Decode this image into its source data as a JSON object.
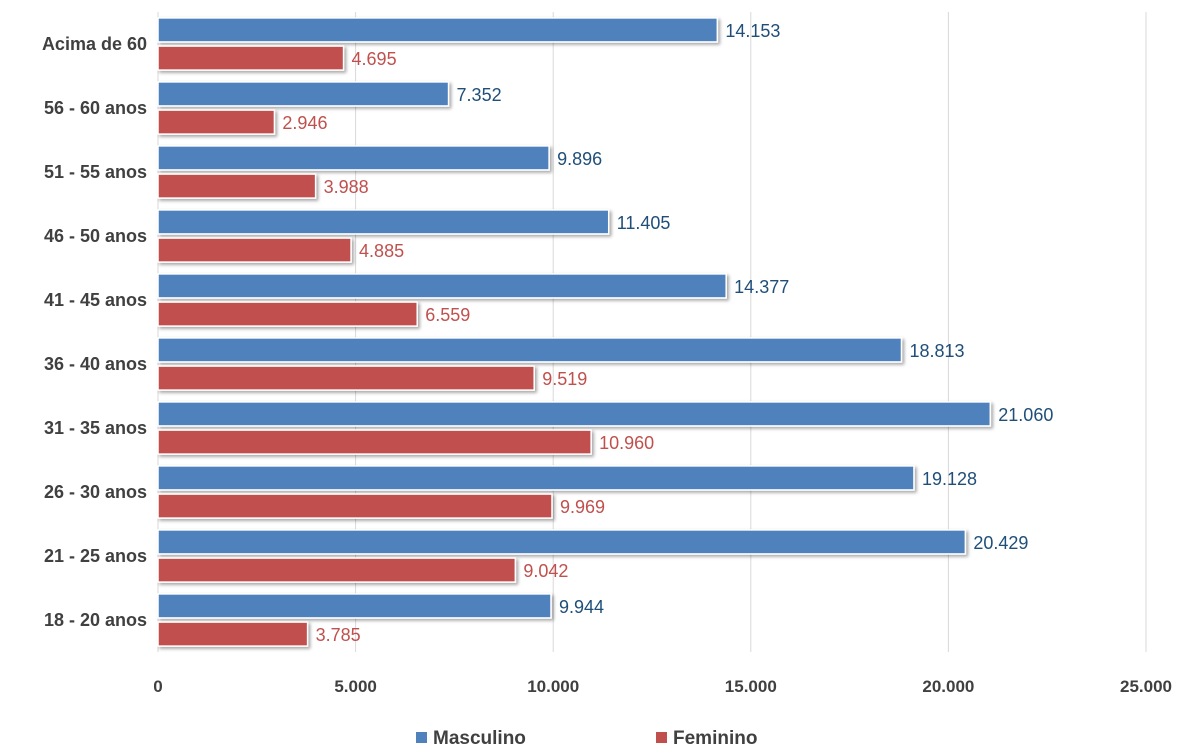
{
  "chart_data": {
    "type": "bar",
    "orientation": "horizontal",
    "categories": [
      "Acima de 60",
      "56 - 60 anos",
      "51 - 55 anos",
      "46 - 50 anos",
      "41 - 45 anos",
      "36 - 40 anos",
      "31 - 35 anos",
      "26 - 30 anos",
      "21 - 25 anos",
      "18 - 20 anos"
    ],
    "series": [
      {
        "name": "Masculino",
        "color": "#4f81bd",
        "label_color": "#1f4e79",
        "values": [
          14153,
          7352,
          9896,
          11405,
          14377,
          18813,
          21060,
          19128,
          20429,
          9944
        ],
        "value_labels": [
          "14.153",
          "7.352",
          "9.896",
          "11.405",
          "14.377",
          "18.813",
          "21.060",
          "19.128",
          "20.429",
          "9.944"
        ]
      },
      {
        "name": "Feminino",
        "color": "#c0504d",
        "label_color": "#c0504d",
        "values": [
          4695,
          2946,
          3988,
          4885,
          6559,
          9519,
          10960,
          9969,
          9042,
          3785
        ],
        "value_labels": [
          "4.695",
          "2.946",
          "3.988",
          "4.885",
          "6.559",
          "9.519",
          "10.960",
          "9.969",
          "9.042",
          "3.785"
        ]
      }
    ],
    "xlim": [
      0,
      25000
    ],
    "x_ticks": [
      0,
      5000,
      10000,
      15000,
      20000,
      25000
    ],
    "x_tick_labels": [
      "0",
      "5.000",
      "10.000",
      "15.000",
      "20.000",
      "25.000"
    ],
    "title": "",
    "xlabel": "",
    "ylabel": "",
    "grid": "vertical",
    "legend_position": "bottom"
  }
}
